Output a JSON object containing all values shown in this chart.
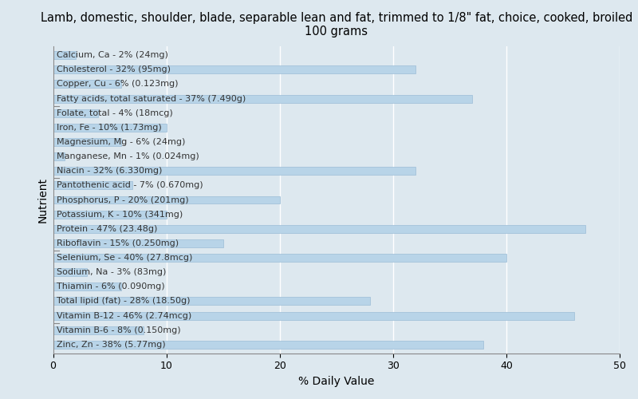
{
  "title": "Lamb, domestic, shoulder, blade, separable lean and fat, trimmed to 1/8\" fat, choice, cooked, broiled\n100 grams",
  "xlabel": "% Daily Value",
  "ylabel": "Nutrient",
  "xlim": [
    0,
    50
  ],
  "background_color": "#dde8ef",
  "bar_color": "#b8d4e8",
  "bar_edge_color": "#9bbcd6",
  "nutrients": [
    {
      "label": "Calcium, Ca - 2% (24mg)",
      "value": 2
    },
    {
      "label": "Cholesterol - 32% (95mg)",
      "value": 32
    },
    {
      "label": "Copper, Cu - 6% (0.123mg)",
      "value": 6
    },
    {
      "label": "Fatty acids, total saturated - 37% (7.490g)",
      "value": 37
    },
    {
      "label": "Folate, total - 4% (18mcg)",
      "value": 4
    },
    {
      "label": "Iron, Fe - 10% (1.73mg)",
      "value": 10
    },
    {
      "label": "Magnesium, Mg - 6% (24mg)",
      "value": 6
    },
    {
      "label": "Manganese, Mn - 1% (0.024mg)",
      "value": 1
    },
    {
      "label": "Niacin - 32% (6.330mg)",
      "value": 32
    },
    {
      "label": "Pantothenic acid - 7% (0.670mg)",
      "value": 7
    },
    {
      "label": "Phosphorus, P - 20% (201mg)",
      "value": 20
    },
    {
      "label": "Potassium, K - 10% (341mg)",
      "value": 10
    },
    {
      "label": "Protein - 47% (23.48g)",
      "value": 47
    },
    {
      "label": "Riboflavin - 15% (0.250mg)",
      "value": 15
    },
    {
      "label": "Selenium, Se - 40% (27.8mcg)",
      "value": 40
    },
    {
      "label": "Sodium, Na - 3% (83mg)",
      "value": 3
    },
    {
      "label": "Thiamin - 6% (0.090mg)",
      "value": 6
    },
    {
      "label": "Total lipid (fat) - 28% (18.50g)",
      "value": 28
    },
    {
      "label": "Vitamin B-12 - 46% (2.74mcg)",
      "value": 46
    },
    {
      "label": "Vitamin B-6 - 8% (0.150mg)",
      "value": 8
    },
    {
      "label": "Zinc, Zn - 38% (5.77mg)",
      "value": 38
    }
  ],
  "label_fontsize": 8,
  "title_fontsize": 10.5,
  "xlabel_fontsize": 10,
  "ylabel_fontsize": 10,
  "xtick_fontsize": 9,
  "bar_height": 0.55,
  "grid_color": "#ffffff",
  "spine_color": "#888888",
  "text_color": "#333333"
}
